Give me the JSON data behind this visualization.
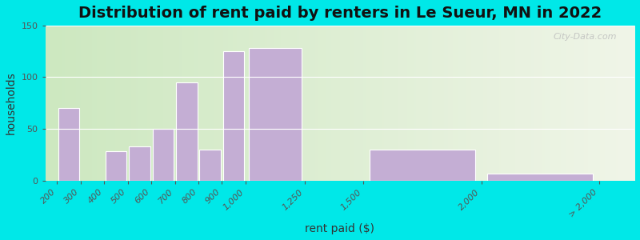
{
  "title": "Distribution of rent paid by renters in Le Sueur, MN in 2022",
  "xlabel": "rent paid ($)",
  "ylabel": "households",
  "tick_positions": [
    200,
    300,
    400,
    500,
    600,
    700,
    800,
    900,
    1000,
    1250,
    1500,
    2000,
    2500
  ],
  "tick_labels": [
    "200",
    "300",
    "400",
    "500",
    "600",
    "700",
    "800",
    "900",
    "1,000",
    "1,250",
    "1,500",
    "2,000",
    "> 2,000"
  ],
  "bar_lefts": [
    200,
    300,
    400,
    500,
    600,
    700,
    800,
    900,
    1000,
    1250,
    1500,
    2000
  ],
  "bar_widths": [
    100,
    100,
    100,
    100,
    100,
    100,
    100,
    100,
    250,
    250,
    500,
    500
  ],
  "values": [
    70,
    0,
    28,
    33,
    50,
    95,
    30,
    125,
    128,
    0,
    30,
    7
  ],
  "bar_color": "#c4aed4",
  "ylim": [
    0,
    150
  ],
  "yticks": [
    0,
    50,
    100,
    150
  ],
  "xlim_left": 150,
  "xlim_right": 2650,
  "background_outer": "#00e8e8",
  "bg_left_color": "#cde8c0",
  "bg_right_color": "#f0f5e8",
  "title_fontsize": 14,
  "axis_label_fontsize": 10,
  "tick_fontsize": 8,
  "watermark_text": "City-Data.com"
}
